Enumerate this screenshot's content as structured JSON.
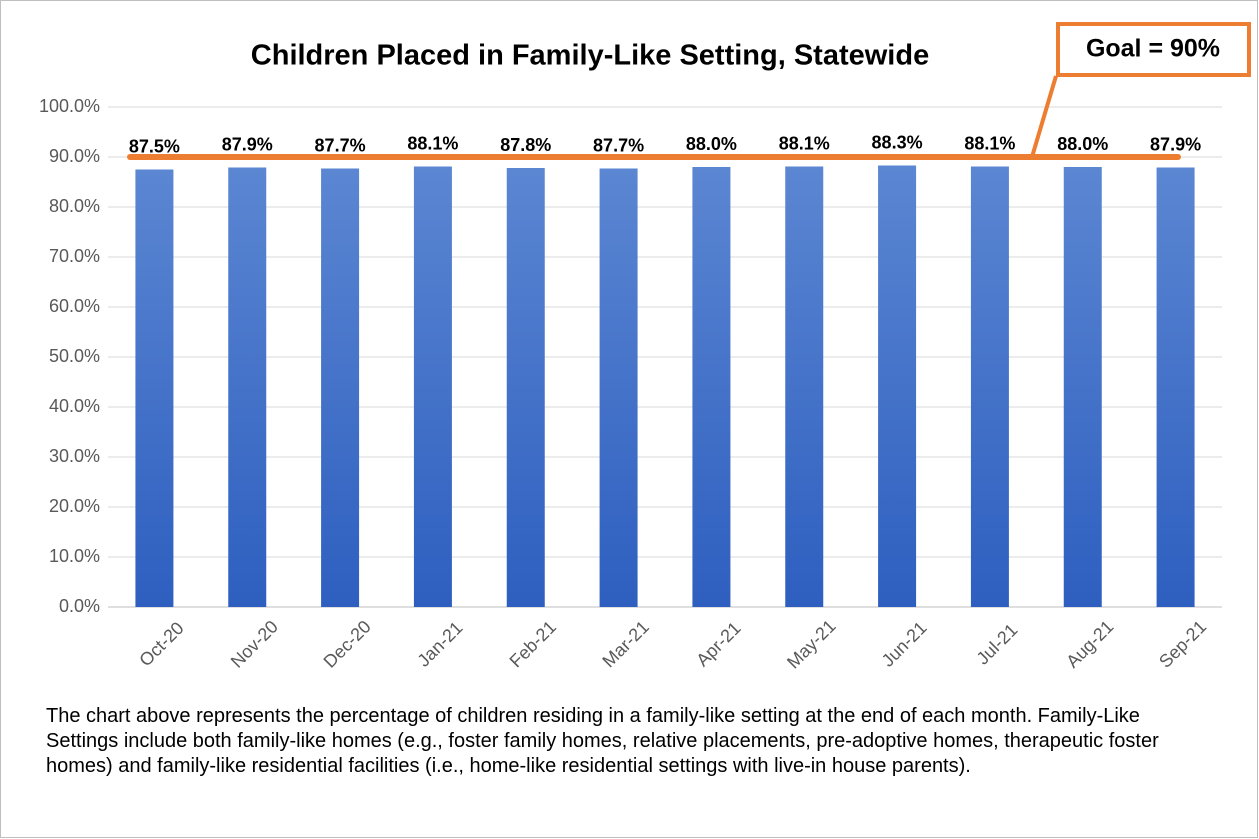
{
  "chart_data": {
    "type": "bar",
    "title": "Children Placed in Family-Like Setting, Statewide",
    "categories": [
      "Oct-20",
      "Nov-20",
      "Dec-20",
      "Jan-21",
      "Feb-21",
      "Mar-21",
      "Apr-21",
      "May-21",
      "Jun-21",
      "Jul-21",
      "Aug-21",
      "Sep-21"
    ],
    "values": [
      87.5,
      87.9,
      87.7,
      88.1,
      87.8,
      87.7,
      88.0,
      88.1,
      88.3,
      88.1,
      88.0,
      87.9
    ],
    "value_labels": [
      "87.5%",
      "87.9%",
      "87.7%",
      "88.1%",
      "87.8%",
      "87.7%",
      "88.0%",
      "88.1%",
      "88.3%",
      "88.1%",
      "88.0%",
      "87.9%"
    ],
    "color": "#4472c4",
    "ylim": [
      0,
      100
    ],
    "yticks": [
      {
        "value": 0,
        "label": "0.0%"
      },
      {
        "value": 10,
        "label": "10.0%"
      },
      {
        "value": 20,
        "label": "20.0%"
      },
      {
        "value": 30,
        "label": "30.0%"
      },
      {
        "value": 40,
        "label": "40.0%"
      },
      {
        "value": 50,
        "label": "50.0%"
      },
      {
        "value": 60,
        "label": "60.0%"
      },
      {
        "value": 70,
        "label": "70.0%"
      },
      {
        "value": 80,
        "label": "80.0%"
      },
      {
        "value": 90,
        "label": "90.0%"
      },
      {
        "value": 100,
        "label": "100.0%"
      }
    ],
    "grid": true,
    "goal": {
      "value": 90,
      "label": "Goal = 90%",
      "color": "#ed7d31"
    },
    "caption": "The chart above represents the percentage of children residing in a family-like setting at the end of each month. Family-Like Settings include both family-like homes (e.g., foster family homes, relative placements, pre-adoptive homes, therapeutic foster homes) and family-like residential facilities (i.e., home-like residential settings with live-in house parents)."
  }
}
